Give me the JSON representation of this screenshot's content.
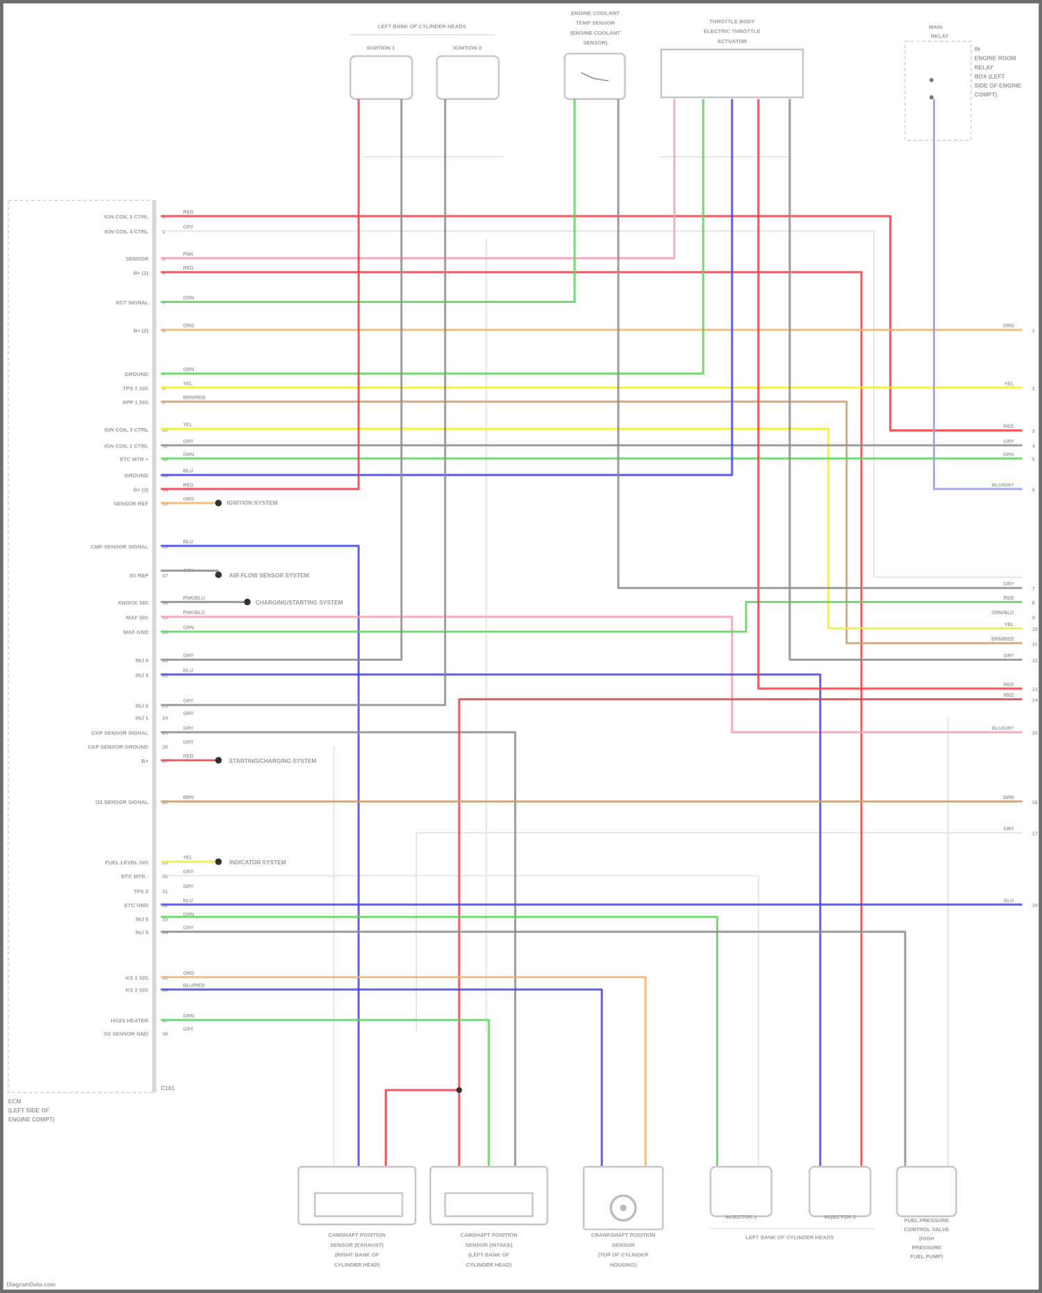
{
  "components": {
    "ignition_group_title": "LEFT BANK OF CYLINDER HEADS",
    "ignition_coil_1": "IGNITION 1",
    "ignition_coil_2": "IGNITION 2",
    "ect_sensor": [
      "ENGINE COOLANT",
      "TEMP SENSOR",
      "(ENGINE COOLANT",
      "SENSOR)"
    ],
    "throttle_body": [
      "THROTTLE BODY",
      "ELECTRIC THROTTLE",
      "ACTUATOR"
    ],
    "relay": [
      "MAIN",
      "RELAY"
    ],
    "relay_note": [
      "IN",
      "ENGINE ROOM",
      "RELAY",
      "BOX (LEFT",
      "SIDE OF ENGINE",
      "COMPT)"
    ],
    "ecm": [
      "ECM",
      "(LEFT SIDE OF",
      "ENGINE COMPT)"
    ],
    "ecm_connector": "C101",
    "cmp_sensor_a": [
      "CAMSHAFT POSITION",
      "SENSOR (EXHAUST)",
      "(RIGHT BANK OF",
      "CYLINDER HEAD)"
    ],
    "cmp_sensor_b": [
      "CAMSHAFT POSITION",
      "SENSOR (INTAKE)",
      "(LEFT BANK OF",
      "CYLINDER HEAD)"
    ],
    "ckp_sensor": [
      "CRANKSHAFT POSITION",
      "SENSOR",
      "(TOP OF CYLINDER",
      "HOUSING)"
    ],
    "injector_1": "INJECTOR 1",
    "injector_2": "INJECTOR 2",
    "injector_group_title": "LEFT BANK OF CYLINDER HEADS",
    "fuel_pump": [
      "FUEL PRESSURE",
      "CONTROL VALVE",
      "(HIGH",
      "PRESSURE",
      "FUEL PUMP)"
    ]
  },
  "ecm_pins": [
    "IGN COIL 2 CTRL",
    "IGN COIL 4 CTRL",
    "SENSOR",
    "B+ (1)",
    "ECT SIGNAL",
    "B+ (2)",
    "GROUND",
    "TPS 1 SIG",
    "APP 1 SIG",
    "IGN COIL 3 CTRL",
    "IGN COIL 1 CTRL",
    "ETC MTR +",
    "GROUND",
    "B+ (3)",
    "SENSOR REF",
    "CMP SENSOR SIGNAL",
    "5V REF",
    "KNOCK SIG",
    "MAF SIG",
    "MAF GND",
    "INJ 4",
    "INJ 3",
    "INJ 2",
    "INJ 1",
    "CKP SENSOR SIGNAL",
    "CKP SENSOR GROUND",
    "B+",
    "O2 SENSOR SIGNAL",
    "FUEL LEVEL SIG",
    "ETC MTR -",
    "TPS 2",
    "ETC GND",
    "INJ 5",
    "INJ 6",
    "KS 1 SIG",
    "KS 2 SIG",
    "HO2S HEATER",
    "O2 SENSOR GND"
  ],
  "wire_codes": [
    "RED",
    "GRY",
    "PNK",
    "RED",
    "GRN",
    "ORG",
    "GRN",
    "YEL",
    "BRN/RED",
    "YEL",
    "GRY",
    "GRN",
    "BLU",
    "RED",
    "ORG",
    "BLU",
    "GRY",
    "PNK/BLU",
    "PNK/BLU",
    "GRN",
    "GRY",
    "BLU",
    "GRY",
    "GRY",
    "GRY",
    "GRY",
    "RED",
    "BRN",
    "YEL",
    "GRY",
    "GRY",
    "BLU",
    "GRN",
    "GRY",
    "ORG",
    "BLU/RED",
    "GRN",
    "GRY"
  ],
  "right_edge_codes": [
    "ORG",
    "YEL",
    "RED",
    "GRY",
    "GRN",
    "BLU/GRY",
    "GRY",
    "RED",
    "GRN/BLU",
    "YEL",
    "BRN/RED",
    "GRY",
    "RED",
    "RED",
    "BLU/GRY",
    "BRN",
    "GRY",
    "BLU"
  ],
  "splice_notes": [
    "IGNITION SYSTEM",
    "AIR FLOW SENSOR SYSTEM",
    "CHARGING/STARTING SYSTEM",
    "STARTING/CHARGING SYSTEM",
    "INDICATOR SYSTEM"
  ],
  "wire_colors": {
    "red": "#f03c46",
    "pink": "#f6a0b4",
    "green": "#5fd15f",
    "yellow": "#f5f020",
    "orange": "#f6b060",
    "tan": "#c8a070",
    "gray": "#8c8c8c",
    "blue": "#4646e6",
    "light_blue": "#9a9af0"
  },
  "footer": "DiagramData.com"
}
